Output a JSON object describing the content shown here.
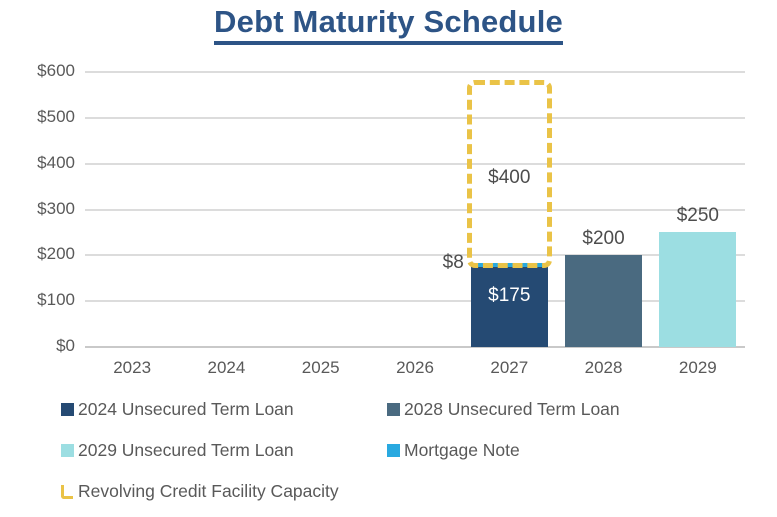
{
  "chart_data": {
    "type": "bar",
    "title": "Debt Maturity Schedule",
    "categories": [
      "2023",
      "2024",
      "2025",
      "2026",
      "2027",
      "2028",
      "2029"
    ],
    "ylim": [
      0,
      600
    ],
    "ytick_step": 100,
    "ytick_prefix": "$",
    "grid": true,
    "legend_position": "bottom",
    "series": [
      {
        "name": "2024 Unsecured Term Loan",
        "color": "#254A73",
        "values": [
          0,
          0,
          0,
          0,
          175,
          0,
          0
        ]
      },
      {
        "name": "2028 Unsecured Term Loan",
        "color": "#4A6A80",
        "values": [
          0,
          0,
          0,
          0,
          0,
          200,
          0
        ]
      },
      {
        "name": "2029 Unsecured Term Loan",
        "color": "#9CDEE2",
        "values": [
          0,
          0,
          0,
          0,
          0,
          0,
          250
        ]
      },
      {
        "name": "Mortgage Note",
        "color": "#29A9E0",
        "values": [
          0,
          0,
          0,
          0,
          8,
          0,
          0
        ]
      }
    ],
    "bars": [
      {
        "category": "2027",
        "stack": [
          {
            "series": 0,
            "value": 175,
            "label": "$175",
            "placement": "inside"
          },
          {
            "series": 3,
            "value": 8,
            "label": "$8",
            "placement": "left"
          }
        ]
      },
      {
        "category": "2028",
        "stack": [
          {
            "series": 1,
            "value": 200,
            "label": "$200",
            "placement": "above"
          }
        ]
      },
      {
        "category": "2029",
        "stack": [
          {
            "series": 2,
            "value": 250,
            "label": "$250",
            "placement": "above"
          }
        ]
      }
    ],
    "overlay_box": {
      "name": "Revolving Credit Facility Capacity",
      "category": "2027",
      "value": 400,
      "label": "$400",
      "color": "#EAC347",
      "style": "dashed"
    },
    "legend": [
      {
        "label": "2024 Unsecured Term Loan",
        "marker": "square",
        "color": "#254A73"
      },
      {
        "label": "2028 Unsecured Term Loan",
        "marker": "square",
        "color": "#4A6A80"
      },
      {
        "label": "2029 Unsecured Term Loan",
        "marker": "square",
        "color": "#9CDEE2"
      },
      {
        "label": "Mortgage Note",
        "marker": "square",
        "color": "#29A9E0"
      },
      {
        "label": "Revolving Credit Facility Capacity",
        "marker": "dashed-corner",
        "color": "#EAC347"
      }
    ],
    "text_colors": {
      "title": "#2D5486",
      "axis": "#595959",
      "value_labels": "#4D4D4D",
      "inside_label": "#FFFFFF"
    }
  }
}
